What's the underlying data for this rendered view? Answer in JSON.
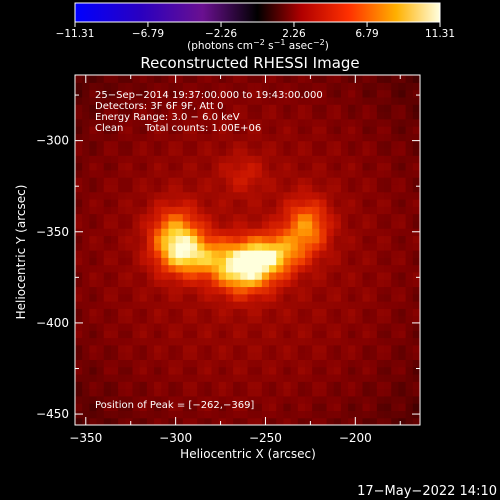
{
  "chart_data": {
    "type": "heatmap",
    "title": "Reconstructed RHESSI Image",
    "xlabel": "Heliocentric X (arcsec)",
    "ylabel": "Heliocentric Y (arcsec)",
    "xlim": [
      -356,
      -164
    ],
    "ylim": [
      -456,
      -264
    ],
    "x_ticks": [
      -350,
      -300,
      -250,
      -200
    ],
    "y_ticks": [
      -300,
      -350,
      -400,
      -450
    ],
    "x_tick_labels": [
      "−350",
      "−300",
      "−250",
      "−200"
    ],
    "y_tick_labels": [
      "−300",
      "−350",
      "−400",
      "−450"
    ],
    "colorbar": {
      "min": -11.31,
      "max": 11.31,
      "tick_values": [
        -11.31,
        -6.79,
        -2.26,
        2.26,
        6.79,
        11.31
      ],
      "tick_labels": [
        "−11.31",
        "−6.79",
        "−2.26",
        "2.26",
        "6.79",
        "11.31"
      ],
      "units_main": "(photons cm",
      "units_exp1": "−2",
      "units_mid": " s",
      "units_exp2": "−1",
      "units_end": " asec",
      "units_exp3": "−2",
      "units_close": ")"
    },
    "annotations": [
      "25−Sep−2014 19:37:00.000 to 19:43:00.000",
      "Detectors: 3F 6F 9F, Att 0",
      "Energy Range: 3.0 − 6.0 keV",
      "Clean",
      "Total counts: 1.00E+06",
      "Position of Peak = [−262,−369]"
    ],
    "sources": [
      {
        "x": -300,
        "y": -354,
        "sx": 10,
        "sy": 12,
        "amp": 7.2
      },
      {
        "x": -288,
        "y": -363,
        "sx": 11,
        "sy": 8,
        "amp": 4.5
      },
      {
        "x": -262,
        "y": -369,
        "sx": 12,
        "sy": 10,
        "amp": 9.2
      },
      {
        "x": -244,
        "y": -362,
        "sx": 10,
        "sy": 8,
        "amp": 5.2
      },
      {
        "x": -227,
        "y": -347,
        "sx": 9,
        "sy": 11,
        "amp": 5.6
      },
      {
        "x": -262,
        "y": -318,
        "sx": 9,
        "sy": 8,
        "amp": 2.0
      }
    ],
    "background_level": 3.2,
    "date_stamp": "17−May−2022 14:10"
  }
}
